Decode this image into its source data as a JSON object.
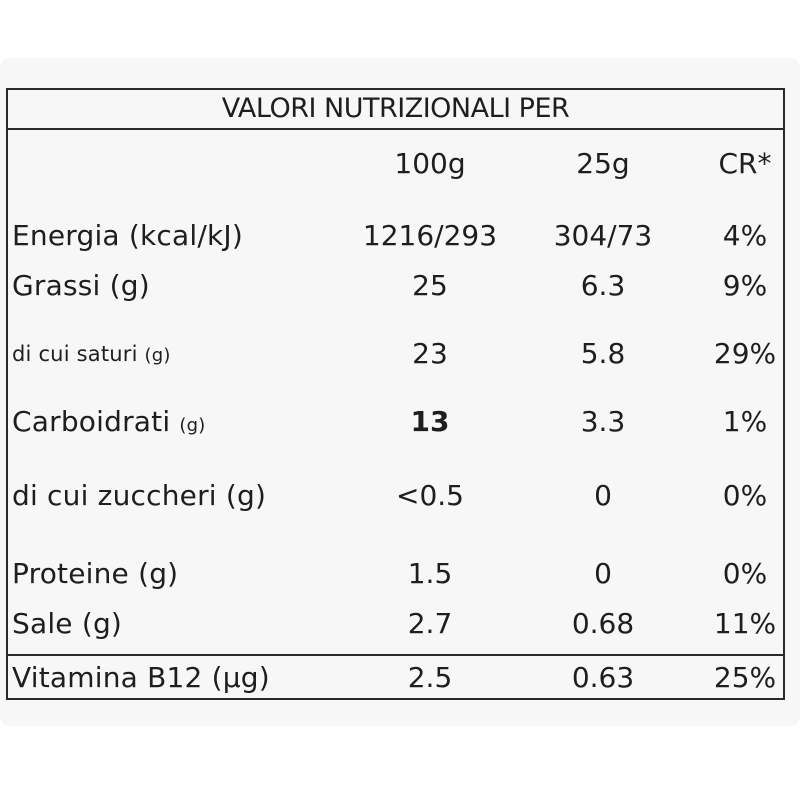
{
  "label": {
    "title": "VALORI NUTRIZIONALI PER",
    "columns": [
      "100g",
      "25g",
      "CR*"
    ],
    "rows": [
      {
        "name": "Energia (kcal/kJ)",
        "v100": "1216/293",
        "v25": "304/73",
        "cr": "4%"
      },
      {
        "name": "Grassi (g)",
        "v100": "25",
        "v25": "6.3",
        "cr": "9%"
      },
      {
        "name": "di cui saturi",
        "unit": "(g)",
        "v100": "23",
        "v25": "5.8",
        "cr": "29%"
      },
      {
        "name": "Carboidrati",
        "unit": "(g)",
        "v100": "13",
        "v25": "3.3",
        "cr": "1%"
      },
      {
        "name": "di cui zuccheri (g)",
        "v100": "<0.5",
        "v25": "0",
        "cr": "0%"
      },
      {
        "name": "Proteine (g)",
        "v100": "1.5",
        "v25": "0",
        "cr": "0%"
      },
      {
        "name": "Sale (g)",
        "v100": "2.7",
        "v25": "0.68",
        "cr": "11%"
      },
      {
        "name": "Vitamina B12 (µg)",
        "v100": "2.5",
        "v25": "0.63",
        "cr": "25%"
      }
    ]
  }
}
